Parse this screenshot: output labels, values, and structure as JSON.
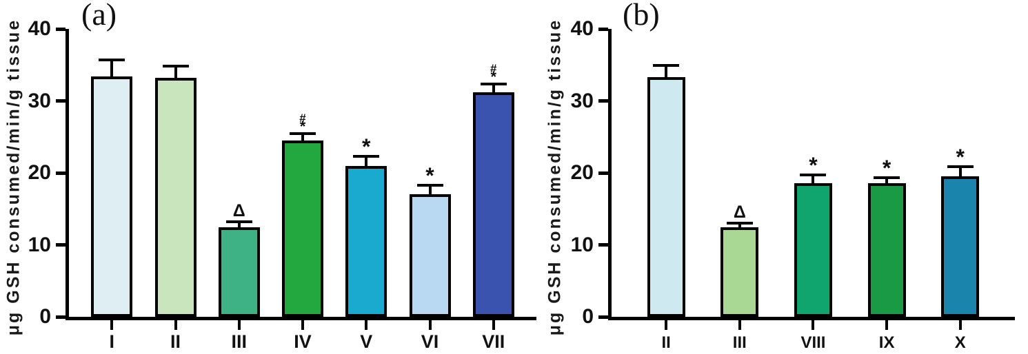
{
  "chart_data": [
    {
      "type": "bar",
      "panel_label": "(a)",
      "ylabel": "μg GSH consumed/min/g tissue",
      "xlabel": "",
      "ylim": [
        0,
        40
      ],
      "yticks": [
        0,
        10,
        20,
        30,
        40
      ],
      "grid": false,
      "legend": "none",
      "categories": [
        "I",
        "II",
        "III",
        "IV",
        "V",
        "VI",
        "VII"
      ],
      "values": [
        33.4,
        33.2,
        12.4,
        24.5,
        21.0,
        17.0,
        31.2
      ],
      "errors_plus": [
        2.3,
        1.6,
        0.8,
        1.0,
        1.3,
        1.3,
        1.1
      ],
      "sig_annotations": [
        "",
        "",
        "Δ",
        "#*",
        "*",
        "*",
        "#*"
      ],
      "bar_colors": [
        "#dfeef2",
        "#c8e5bd",
        "#3fb285",
        "#22a83e",
        "#1aa9cf",
        "#b9d8f2",
        "#3a53ae"
      ],
      "bar_outline_color": "#000000"
    },
    {
      "type": "bar",
      "panel_label": "(b)",
      "ylabel": "μg GSH consumed/min/g tissue",
      "xlabel": "",
      "ylim": [
        0,
        40
      ],
      "yticks": [
        0,
        10,
        20,
        30,
        40
      ],
      "grid": false,
      "legend": "none",
      "categories": [
        "II",
        "III",
        "VIII",
        "IX",
        "X"
      ],
      "values": [
        33.3,
        12.4,
        18.6,
        18.6,
        19.5
      ],
      "errors_plus": [
        1.6,
        0.6,
        1.1,
        0.7,
        1.4
      ],
      "sig_annotations": [
        "",
        "Δ",
        "*",
        "*",
        "*"
      ],
      "bar_colors": [
        "#cfe9f0",
        "#a8d894",
        "#10a56f",
        "#1a9a44",
        "#1b84ad"
      ],
      "bar_outline_color": "#000000"
    }
  ]
}
